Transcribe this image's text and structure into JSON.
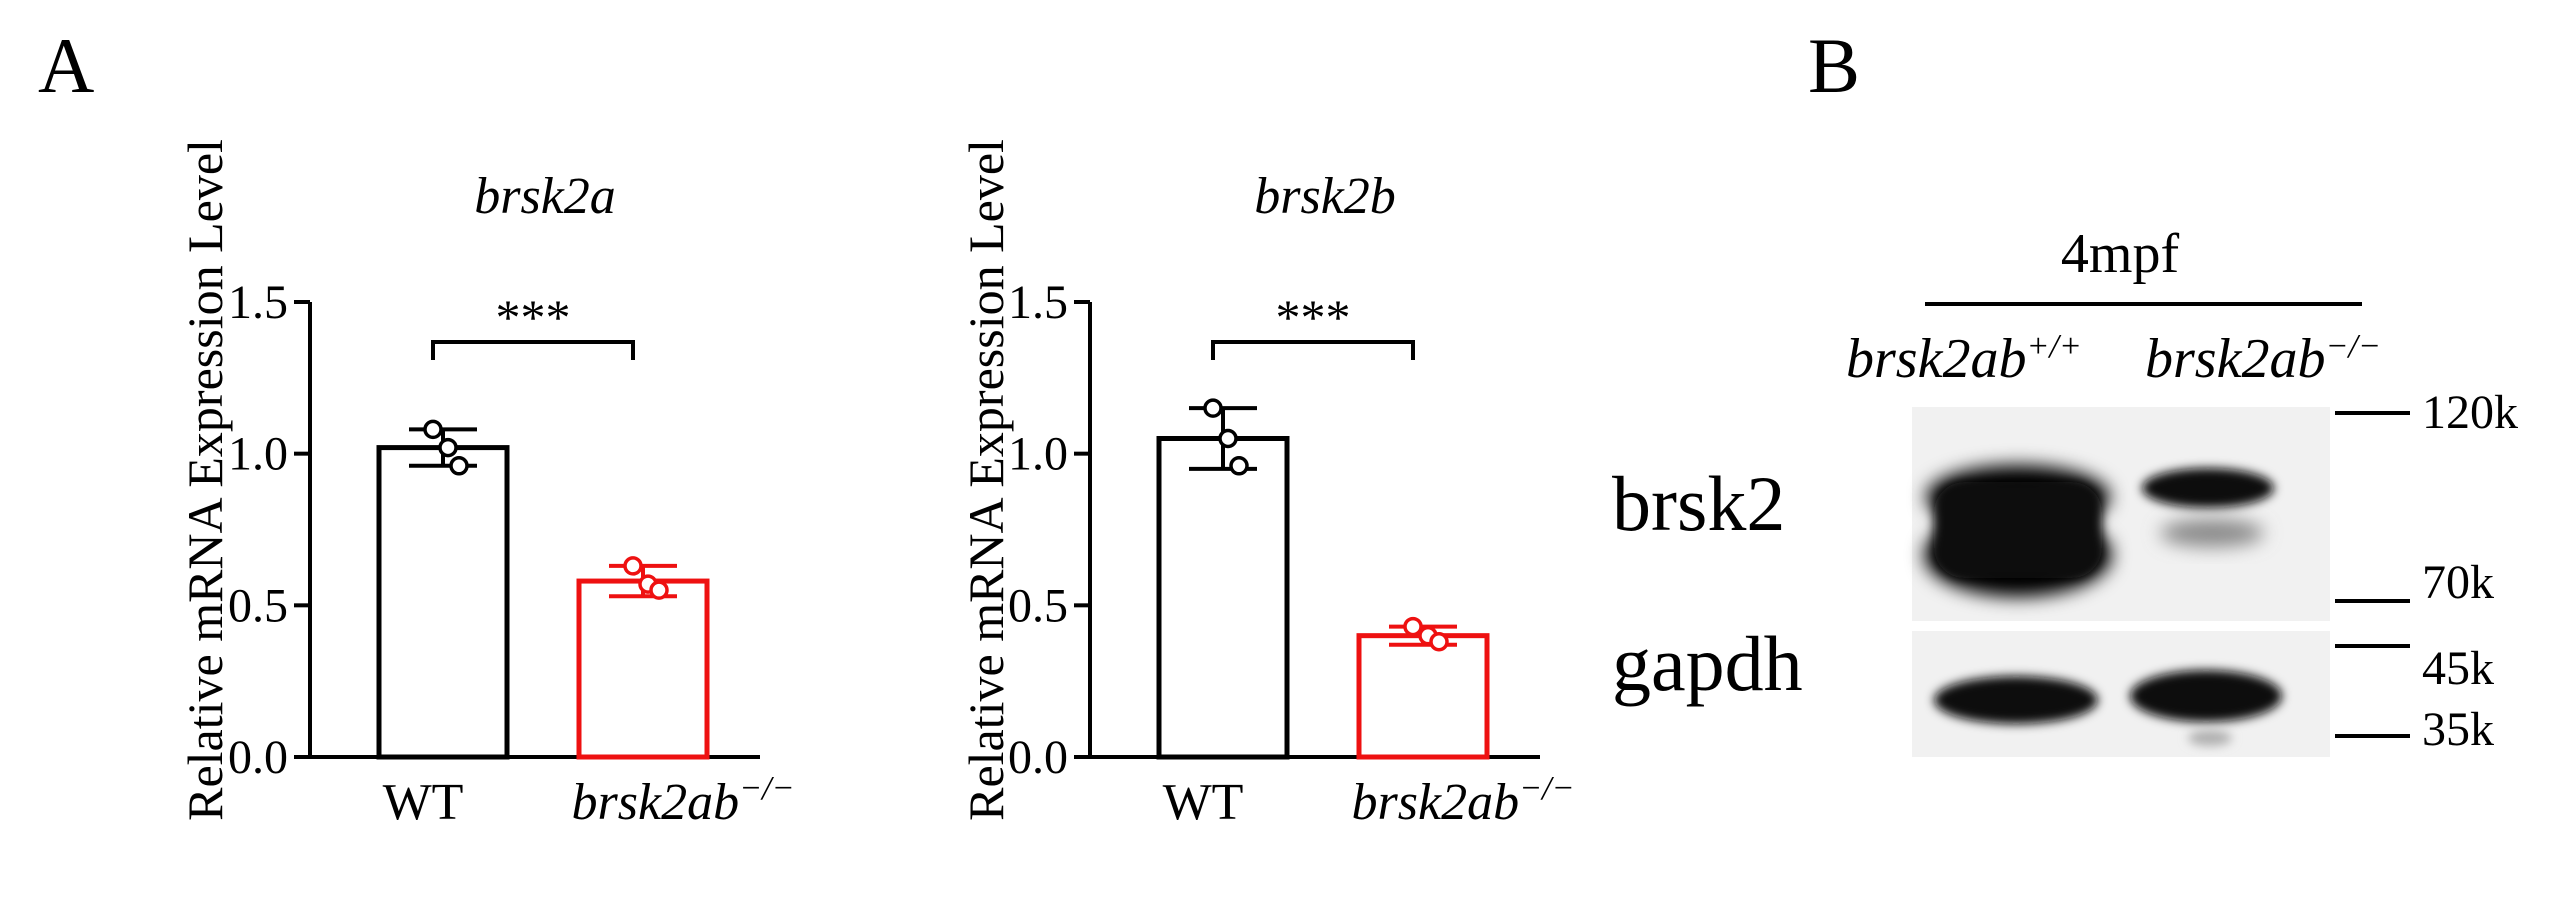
{
  "panels": {
    "a": "A",
    "b": "B"
  },
  "colors": {
    "wt": "#000000",
    "mutant": "#ee1111"
  },
  "chart_data": [
    {
      "type": "bar",
      "title": "brsk2a",
      "ylabel": "Relative mRNA Expression Level",
      "ylim": [
        0,
        1.5
      ],
      "yticks": [
        "0.0",
        "0.5",
        "1.0",
        "1.5"
      ],
      "categories": [
        {
          "label": "WT",
          "sup": ""
        },
        {
          "label": "brsk2ab",
          "sup": "−/−"
        }
      ],
      "values": [
        1.02,
        0.58
      ],
      "error": [
        0.06,
        0.05
      ],
      "points": [
        [
          1.08,
          1.02,
          0.96
        ],
        [
          0.63,
          0.57,
          0.55
        ]
      ],
      "significance": "***"
    },
    {
      "type": "bar",
      "title": "brsk2b",
      "ylabel": "Relative mRNA Expression Level",
      "ylim": [
        0,
        1.5
      ],
      "yticks": [
        "0.0",
        "0.5",
        "1.0",
        "1.5"
      ],
      "categories": [
        {
          "label": "WT",
          "sup": ""
        },
        {
          "label": "brsk2ab",
          "sup": "−/−"
        }
      ],
      "values": [
        1.05,
        0.4
      ],
      "error": [
        0.1,
        0.03
      ],
      "points": [
        [
          1.15,
          1.05,
          0.96
        ],
        [
          0.43,
          0.4,
          0.38
        ]
      ],
      "significance": "***"
    }
  ],
  "blot": {
    "timepoint": "4mpf",
    "lanes": [
      {
        "label": "brsk2ab",
        "sup": "+/+"
      },
      {
        "label": "brsk2ab",
        "sup": "−/−"
      }
    ],
    "proteins": [
      "brsk2",
      "gapdh"
    ],
    "markers": [
      "120k",
      "70k",
      "45k",
      "35k"
    ]
  }
}
